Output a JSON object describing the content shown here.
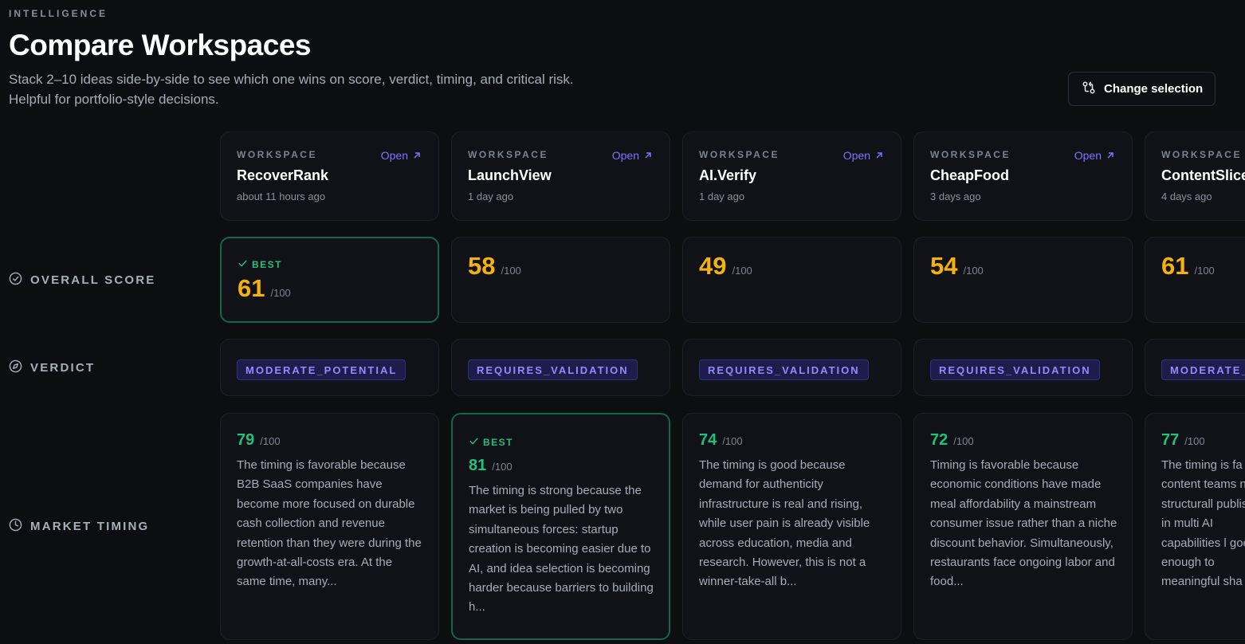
{
  "header": {
    "eyebrow": "INTELLIGENCE",
    "title": "Compare Workspaces",
    "subtitle_line1": "Stack 2–10 ideas side-by-side to see which one wins on score, verdict, timing, and critical risk.",
    "subtitle_line2": "Helpful for portfolio-style decisions.",
    "change_selection_label": "Change selection"
  },
  "rows": {
    "overall_score": "OVERALL SCORE",
    "verdict": "VERDICT",
    "market_timing": "MARKET TIMING"
  },
  "labels": {
    "workspace": "WORKSPACE",
    "open": "Open",
    "best": "BEST",
    "score_max": "/100"
  },
  "colors": {
    "background": "#0d0e12",
    "accent_score": "#f5b20f",
    "accent_best": "#22c07d",
    "accent_link": "#7b74ff"
  },
  "workspaces": [
    {
      "name": "RecoverRank",
      "time": "about 11 hours ago",
      "overall_score": "61",
      "overall_best": true,
      "verdict": "MODERATE_POTENTIAL",
      "timing_score": "79",
      "timing_best": false,
      "timing_text": "The timing is favorable because B2B SaaS companies have become more focused on durable cash collection and revenue retention than they were during the growth-at-all-costs era. At the same time, many..."
    },
    {
      "name": "LaunchView",
      "time": "1 day ago",
      "overall_score": "58",
      "overall_best": false,
      "verdict": "REQUIRES_VALIDATION",
      "timing_score": "81",
      "timing_best": true,
      "timing_text": "The timing is strong because the market is being pulled by two simultaneous forces: startup creation is becoming easier due to AI, and idea selection is becoming harder because barriers to building h..."
    },
    {
      "name": "AI.Verify",
      "time": "1 day ago",
      "overall_score": "49",
      "overall_best": false,
      "verdict": "REQUIRES_VALIDATION",
      "timing_score": "74",
      "timing_best": false,
      "timing_text": "The timing is good because demand for authenticity infrastructure is real and rising, while user pain is already visible across education, media and research. However, this is not a winner-take-all b..."
    },
    {
      "name": "CheapFood",
      "time": "3 days ago",
      "overall_score": "54",
      "overall_best": false,
      "verdict": "REQUIRES_VALIDATION",
      "timing_score": "72",
      "timing_best": false,
      "timing_text": "Timing is favorable because economic conditions have made meal affordability a mainstream consumer issue rather than a niche discount behavior. Simultaneously, restaurants face ongoing labor and food..."
    },
    {
      "name": "ContentSlice",
      "time": "4 days ago",
      "overall_score": "61",
      "overall_best": false,
      "verdict": "MODERATE_",
      "timing_score": "77",
      "timing_best": false,
      "timing_text": "The timing is fa content teams now structurall publish in multi AI capabilities l good enough to meaningful sha"
    }
  ]
}
